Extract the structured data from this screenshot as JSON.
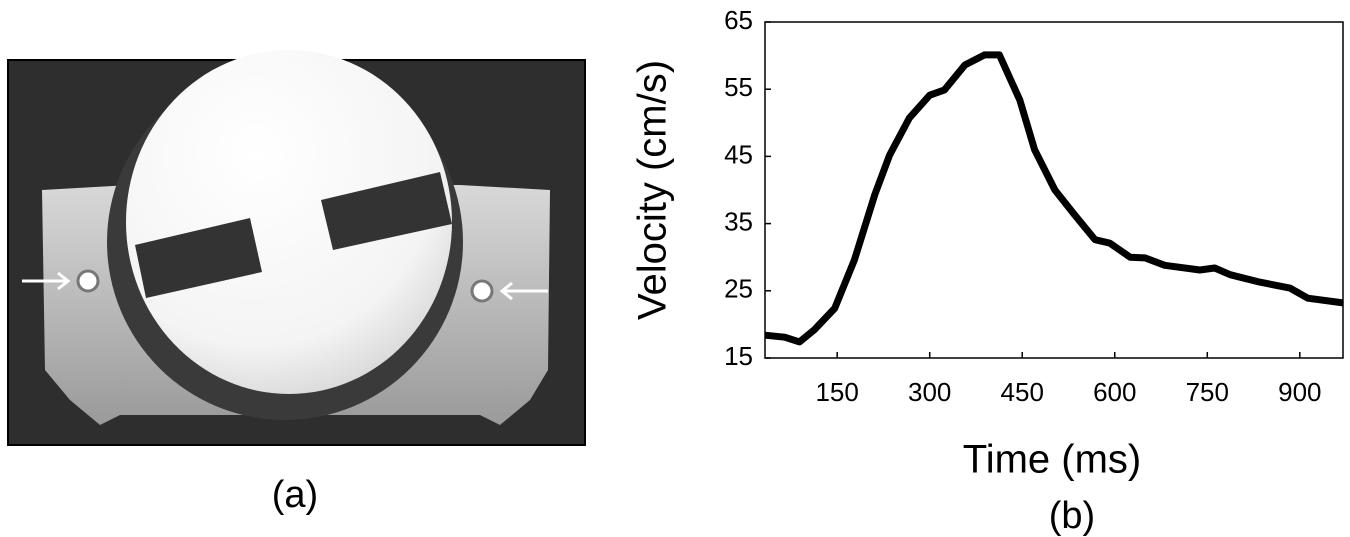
{
  "image_caption": "(a)",
  "chart_data": {
    "type": "line",
    "caption": "(b)",
    "xlabel": "Time (ms)",
    "ylabel": "Velocity (cm/s)",
    "x": [
      33,
      65,
      89,
      113,
      146,
      178,
      211,
      235,
      267,
      300,
      324,
      357,
      389,
      413,
      446,
      470,
      503,
      535,
      568,
      592,
      625,
      649,
      681,
      738,
      762,
      787,
      835,
      884,
      913,
      970
    ],
    "values": [
      18.4,
      18.1,
      17.4,
      19.2,
      22.4,
      29.6,
      39.3,
      45.2,
      50.7,
      54.1,
      54.9,
      58.6,
      60.1,
      60.1,
      53.4,
      46,
      40,
      36.3,
      32.6,
      32.1,
      30,
      29.9,
      28.8,
      28.1,
      28.4,
      27.4,
      26.3,
      25.4,
      23.9,
      23.2
    ],
    "color": "#000000",
    "xlim": [
      33,
      970
    ],
    "ylim": [
      15,
      65
    ],
    "xticks": [
      150,
      300,
      450,
      600,
      750,
      900
    ],
    "yticks": [
      15,
      25,
      35,
      45,
      55,
      65
    ]
  }
}
